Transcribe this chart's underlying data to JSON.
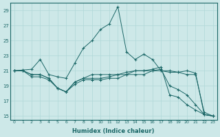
{
  "xlabel": "Humidex (Indice chaleur)",
  "bg_color": "#cde8e8",
  "line_color": "#1a6666",
  "grid_color": "#b0d8d8",
  "xlim": [
    -0.5,
    23.5
  ],
  "ylim": [
    14.5,
    30
  ],
  "xticks": [
    0,
    1,
    2,
    3,
    4,
    5,
    6,
    7,
    8,
    9,
    10,
    11,
    12,
    13,
    14,
    15,
    16,
    17,
    18,
    19,
    20,
    21,
    22,
    23
  ],
  "yticks": [
    15,
    17,
    19,
    21,
    23,
    25,
    27,
    29
  ],
  "series": [
    [
      21.0,
      21.1,
      21.2,
      22.5,
      20.5,
      20.2,
      20.0,
      22.0,
      24.0,
      25.0,
      26.5,
      27.2,
      29.5,
      23.5,
      22.5,
      23.2,
      22.5,
      21.0,
      21.0,
      20.8,
      21.0,
      20.7,
      15.2,
      15.0
    ],
    [
      21.0,
      21.0,
      20.5,
      20.5,
      20.0,
      18.7,
      18.2,
      19.5,
      20.0,
      20.5,
      20.5,
      20.5,
      20.5,
      20.8,
      21.0,
      21.0,
      21.0,
      21.0,
      20.8,
      20.8,
      20.5,
      20.5,
      15.5,
      15.0
    ],
    [
      21.0,
      21.0,
      20.5,
      20.5,
      20.0,
      18.7,
      18.2,
      19.5,
      20.0,
      20.0,
      20.0,
      20.2,
      20.5,
      20.5,
      21.0,
      21.0,
      21.2,
      21.5,
      17.8,
      17.5,
      16.5,
      15.8,
      15.2,
      15.0
    ],
    [
      21.0,
      21.0,
      20.2,
      20.2,
      19.8,
      18.7,
      18.2,
      19.2,
      19.8,
      19.8,
      19.8,
      20.0,
      20.0,
      20.5,
      20.5,
      20.5,
      21.0,
      21.2,
      19.0,
      18.5,
      17.8,
      16.5,
      15.2,
      15.0
    ]
  ]
}
